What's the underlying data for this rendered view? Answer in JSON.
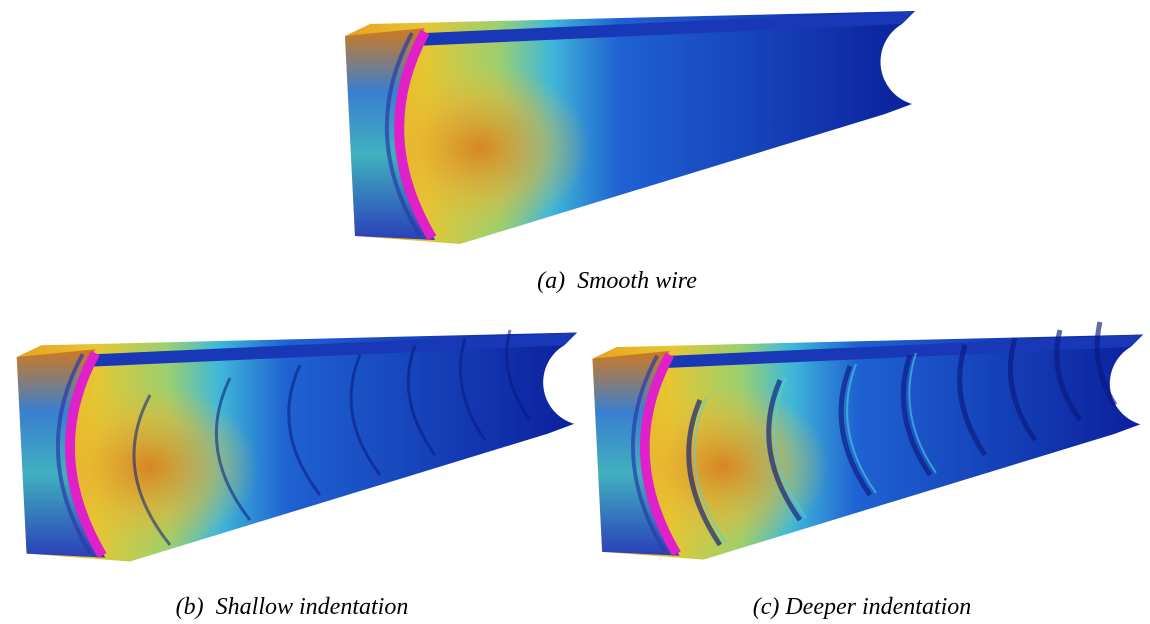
{
  "figure": {
    "panels": [
      {
        "caption": "(a)  Smooth wire"
      },
      {
        "caption": "(b)  Shallow indentation"
      },
      {
        "caption": "(c) Deeper indentation"
      }
    ]
  }
}
